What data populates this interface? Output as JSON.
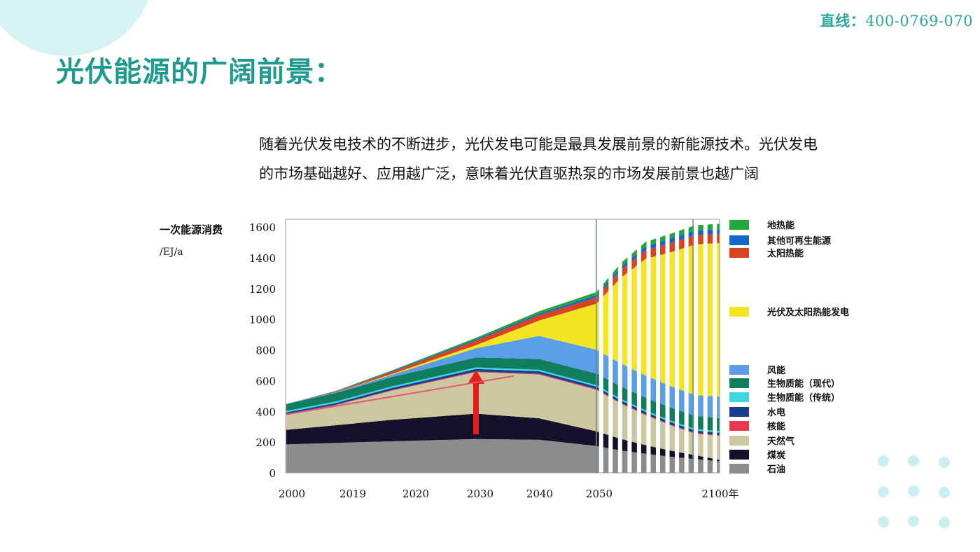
{
  "header": {
    "hotline_label": "直线：",
    "hotline_number": "400-0769-070",
    "title": "光伏能源的广阔前景："
  },
  "intro": {
    "line1": "随着光伏发电技术的不断进步，光伏发电可能是最具发展前景的新能源技术。光伏发电",
    "line2": "的市场基础越好、应用越广泛，意味着光伏直驱热泵的市场发展前景也越广阔"
  },
  "colors": {
    "accent": "#1e9a8f",
    "hotline": "#2aa69b",
    "decor": "#c9eff1"
  },
  "chart_data": {
    "type": "area",
    "ylabel": "一次能源消费",
    "yunit": "/EJ/a",
    "ylim": [
      0,
      1600
    ],
    "yticks": [
      0,
      200,
      400,
      600,
      800,
      1000,
      1200,
      1400,
      1600
    ],
    "x_tick_labels": [
      "2000",
      "2019",
      "2020",
      "2030",
      "2040",
      "2050",
      "2100年"
    ],
    "x": [
      2000,
      2010,
      2020,
      2030,
      2040,
      2050,
      2060,
      2070,
      2080,
      2090,
      2100
    ],
    "series": [
      {
        "name": "石油",
        "color": "#8c8c8c",
        "values": [
          185,
          195,
          205,
          220,
          215,
          175,
          145,
          125,
          105,
          90,
          75
        ]
      },
      {
        "name": "煤炭",
        "color": "#17102a",
        "values": [
          95,
          115,
          140,
          165,
          140,
          95,
          75,
          55,
          40,
          25,
          10
        ]
      },
      {
        "name": "天然气",
        "color": "#cdc7a0",
        "values": [
          100,
          130,
          190,
          270,
          285,
          270,
          230,
          195,
          165,
          140,
          155
        ]
      },
      {
        "name": "核能",
        "color": "#e83a4f",
        "values": [
          3,
          3,
          4,
          5,
          5,
          5,
          5,
          5,
          5,
          5,
          5
        ]
      },
      {
        "name": "水电",
        "color": "#1b3d8f",
        "values": [
          10,
          12,
          14,
          16,
          16,
          16,
          16,
          16,
          16,
          16,
          16
        ]
      },
      {
        "name": "生物质能（传统）",
        "color": "#3dd7e3",
        "values": [
          10,
          10,
          10,
          10,
          10,
          10,
          10,
          10,
          10,
          10,
          10
        ]
      },
      {
        "name": "生物质能（现代）",
        "color": "#117d5f",
        "values": [
          45,
          55,
          60,
          65,
          70,
          75,
          80,
          82,
          84,
          85,
          85
        ]
      },
      {
        "name": "风能",
        "color": "#5b9ee8",
        "values": [
          0,
          5,
          15,
          60,
          150,
          155,
          150,
          145,
          140,
          135,
          140
        ]
      },
      {
        "name": "光伏及太阳热能发电",
        "color": "#f3e424",
        "values": [
          0,
          0,
          5,
          20,
          100,
          300,
          560,
          760,
          870,
          980,
          1000
        ]
      },
      {
        "name": "太阳热能",
        "color": "#d8441f",
        "values": [
          0,
          5,
          15,
          30,
          35,
          40,
          50,
          55,
          60,
          60,
          60
        ]
      },
      {
        "name": "其他可再生能源",
        "color": "#1566c8",
        "values": [
          0,
          2,
          4,
          8,
          10,
          15,
          20,
          25,
          30,
          30,
          30
        ]
      },
      {
        "name": "地热能",
        "color": "#22a83a",
        "values": [
          0,
          2,
          5,
          10,
          15,
          20,
          25,
          30,
          30,
          35,
          35
        ]
      }
    ],
    "annotations": {
      "arrow_year": 2030,
      "arrow_from": 250,
      "arrow_to": 670,
      "decline_from": [
        2000,
        380
      ],
      "decline_to": [
        2036,
        630
      ]
    },
    "legend_placement": "right",
    "grid": false
  }
}
